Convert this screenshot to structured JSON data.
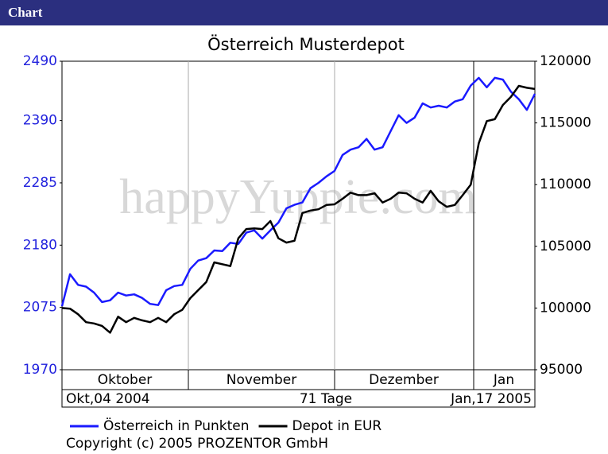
{
  "header": {
    "title": "Chart"
  },
  "chart_data": {
    "type": "line",
    "title": "Österreich Musterdepot",
    "watermark": "happyYuppie.com",
    "months": [
      "Oktober",
      "November",
      "Dezember",
      "Jan"
    ],
    "start_label": "Okt,04 2004",
    "span_label": "71 Tage",
    "end_label": "Jan,17 2005",
    "ylim": [
      1970,
      2490
    ],
    "yticks": [
      1970,
      2075,
      2180,
      2285,
      2390,
      2490
    ],
    "y2lim": [
      95000,
      120000
    ],
    "y2ticks": [
      95000,
      100000,
      105000,
      110000,
      115000,
      120000
    ],
    "grid": false,
    "series": [
      {
        "name": "Österreich in Punkten",
        "color": "#1a1aff",
        "values": [
          2077,
          2131,
          2113,
          2110,
          2100,
          2084,
          2087,
          2100,
          2095,
          2097,
          2091,
          2081,
          2079,
          2104,
          2111,
          2113,
          2140,
          2154,
          2158,
          2171,
          2170,
          2184,
          2182,
          2201,
          2205,
          2191,
          2205,
          2218,
          2242,
          2248,
          2252,
          2276,
          2285,
          2296,
          2305,
          2332,
          2341,
          2345,
          2359,
          2341,
          2345,
          2372,
          2399,
          2386,
          2395,
          2419,
          2412,
          2415,
          2412,
          2422,
          2426,
          2449,
          2462,
          2446,
          2462,
          2459,
          2439,
          2426,
          2408,
          2435
        ]
      },
      {
        "name": "Depot in EUR",
        "color": "#000000",
        "axis": "y2",
        "values": [
          100000,
          99950,
          99500,
          98850,
          98750,
          98550,
          98000,
          99300,
          98850,
          99200,
          99000,
          98850,
          99200,
          98850,
          99500,
          99850,
          100800,
          101450,
          102100,
          103700,
          103550,
          103400,
          105650,
          106400,
          106450,
          106400,
          107050,
          105650,
          105300,
          105450,
          107700,
          107900,
          108000,
          108350,
          108400,
          108850,
          109350,
          109150,
          109150,
          109300,
          108550,
          108850,
          109350,
          109300,
          108850,
          108550,
          109500,
          108650,
          108200,
          108350,
          109150,
          110000,
          113350,
          115150,
          115300,
          116450,
          117100,
          118000,
          117850,
          117750
        ]
      }
    ],
    "legend": "bottom",
    "copyright": "Copyright (c) 2005 PROZENTOR GmbH"
  }
}
